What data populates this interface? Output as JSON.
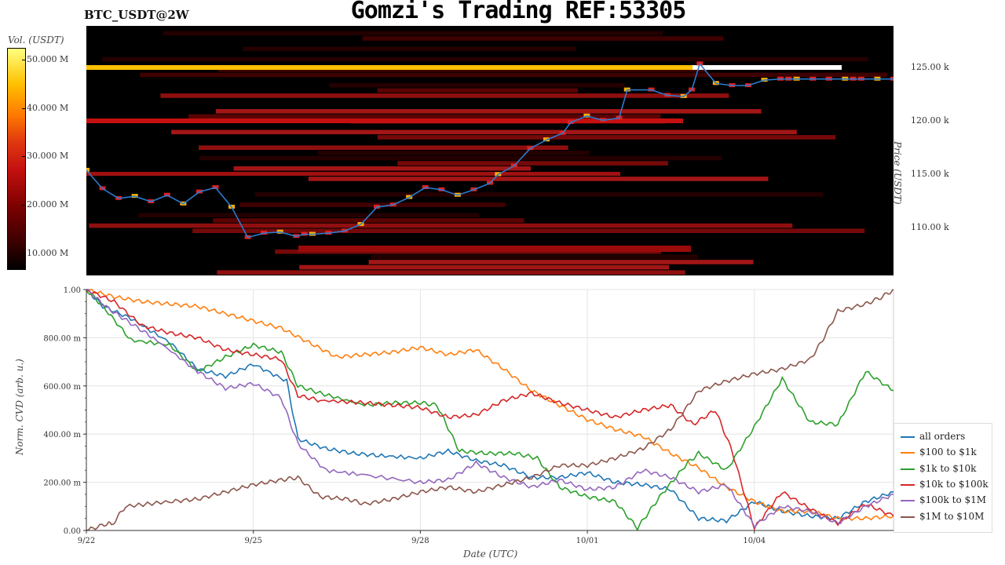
{
  "header": {
    "symbol": "BTC_USDT@2W",
    "title": "Gomzi's Trading REF:53305"
  },
  "colors": {
    "all": "#1f77b4",
    "b100": "#ff7f0e",
    "b1k": "#2ca02c",
    "b10k": "#d62728",
    "b100k": "#9467bd",
    "b1m": "#8c564b"
  },
  "chart_data": [
    {
      "type": "heatmap",
      "colorbar": {
        "label": "Vol. (USDT)",
        "ticks": [
          "50.000 M",
          "40.000 M",
          "30.000 M",
          "20.000 M",
          "10.000 M"
        ]
      },
      "y_axis": {
        "label": "Price (USDT)",
        "ticks": [
          "125.00 k",
          "120.00 k",
          "115.00 k",
          "110.00 k"
        ],
        "range": [
          105500,
          128500
        ]
      },
      "price_series": {
        "x": [
          0,
          0.02,
          0.04,
          0.06,
          0.08,
          0.1,
          0.12,
          0.14,
          0.16,
          0.18,
          0.2,
          0.22,
          0.24,
          0.26,
          0.27,
          0.28,
          0.3,
          0.32,
          0.34,
          0.36,
          0.38,
          0.4,
          0.42,
          0.44,
          0.46,
          0.48,
          0.5,
          0.51,
          0.53,
          0.55,
          0.57,
          0.59,
          0.6,
          0.62,
          0.64,
          0.66,
          0.67,
          0.7,
          0.72,
          0.74,
          0.75,
          0.76,
          0.78,
          0.8,
          0.82,
          0.84,
          0.86,
          0.87,
          0.88,
          0.9,
          0.92,
          0.94,
          0.95,
          0.96,
          0.98,
          1.0
        ],
        "y": [
          115200,
          113500,
          112600,
          112800,
          112300,
          112900,
          112100,
          113200,
          113600,
          111800,
          109000,
          109400,
          109500,
          109100,
          109300,
          109300,
          109400,
          109600,
          110200,
          111800,
          112000,
          112700,
          113600,
          113400,
          112900,
          113400,
          114000,
          114800,
          115600,
          117200,
          118000,
          118600,
          119600,
          120200,
          119800,
          120000,
          122600,
          122600,
          122100,
          122000,
          122600,
          125000,
          123200,
          123000,
          123000,
          123500,
          123600,
          123600,
          123600,
          123600,
          123600,
          123600,
          123600,
          123600,
          123600,
          123600
        ]
      }
    },
    {
      "type": "line",
      "xlabel": "Date (UTC)",
      "ylabel": "Norm. CVD (arb. u.)",
      "x_ticks": [
        "9/22",
        "9/25",
        "9/28",
        "10/01",
        "10/04"
      ],
      "y_ticks": [
        "1.00",
        "800.00 m",
        "600.00 m",
        "400.00 m",
        "200.00 m",
        "0.00"
      ],
      "xlim": [
        0,
        14.5
      ],
      "ylim": [
        0,
        1
      ],
      "series": [
        {
          "name": "all orders",
          "color": "#1f77b4",
          "x": [
            0,
            0.3,
            0.8,
            1.5,
            2.0,
            2.5,
            3.0,
            3.6,
            3.8,
            4.3,
            4.8,
            5.3,
            6.0,
            6.5,
            7.0,
            7.5,
            8.0,
            8.5,
            9.0,
            9.5,
            10.0,
            10.5,
            11.0,
            11.5,
            12.0,
            12.5,
            13.0,
            13.5,
            14.0,
            14.5
          ],
          "y": [
            1.0,
            0.93,
            0.88,
            0.78,
            0.67,
            0.64,
            0.69,
            0.62,
            0.38,
            0.34,
            0.32,
            0.31,
            0.3,
            0.33,
            0.29,
            0.27,
            0.22,
            0.22,
            0.24,
            0.2,
            0.19,
            0.17,
            0.05,
            0.04,
            0.12,
            0.08,
            0.06,
            0.05,
            0.12,
            0.16
          ]
        },
        {
          "name": "$100 to $1k",
          "color": "#ff7f0e",
          "x": [
            0,
            0.5,
            1.0,
            1.5,
            2.0,
            2.5,
            3.0,
            3.5,
            4.0,
            4.5,
            5.0,
            5.5,
            6.0,
            6.5,
            7.0,
            7.5,
            8.0,
            8.5,
            9.0,
            9.5,
            10.0,
            10.5,
            11.0,
            11.5,
            12.0,
            12.5,
            13.0,
            13.5,
            14.0,
            14.5
          ],
          "y": [
            1.0,
            0.97,
            0.95,
            0.94,
            0.93,
            0.9,
            0.87,
            0.84,
            0.78,
            0.72,
            0.73,
            0.74,
            0.76,
            0.73,
            0.75,
            0.67,
            0.58,
            0.52,
            0.46,
            0.42,
            0.39,
            0.32,
            0.26,
            0.18,
            0.12,
            0.08,
            0.08,
            0.05,
            0.05,
            0.06
          ]
        },
        {
          "name": "$1k to $10k",
          "color": "#2ca02c",
          "x": [
            0,
            0.3,
            0.8,
            1.5,
            2.0,
            2.5,
            3.0,
            3.5,
            3.8,
            4.2,
            5.0,
            5.5,
            6.0,
            6.3,
            6.7,
            7.2,
            7.7,
            8.1,
            8.5,
            9.0,
            9.5,
            9.9,
            10.3,
            10.8,
            11.0,
            11.5,
            12.0,
            12.5,
            13.0,
            13.5,
            14.0,
            14.5
          ],
          "y": [
            1.0,
            0.93,
            0.79,
            0.77,
            0.66,
            0.72,
            0.77,
            0.74,
            0.6,
            0.57,
            0.52,
            0.53,
            0.53,
            0.52,
            0.33,
            0.32,
            0.32,
            0.3,
            0.18,
            0.14,
            0.12,
            0.01,
            0.14,
            0.28,
            0.32,
            0.25,
            0.43,
            0.63,
            0.45,
            0.44,
            0.66,
            0.58
          ]
        },
        {
          "name": "$10k to $100k",
          "color": "#d62728",
          "x": [
            0,
            0.5,
            1.0,
            1.5,
            2.0,
            2.5,
            3.0,
            3.5,
            3.8,
            4.2,
            5.0,
            5.5,
            6.0,
            6.5,
            7.0,
            7.5,
            8.0,
            8.5,
            9.0,
            9.5,
            10.0,
            10.5,
            10.9,
            11.3,
            11.6,
            12.0,
            12.5,
            13.0,
            13.5,
            14.0,
            14.5
          ],
          "y": [
            1.0,
            0.95,
            0.85,
            0.82,
            0.8,
            0.75,
            0.73,
            0.71,
            0.56,
            0.54,
            0.53,
            0.52,
            0.51,
            0.47,
            0.48,
            0.54,
            0.57,
            0.53,
            0.5,
            0.47,
            0.5,
            0.52,
            0.44,
            0.5,
            0.33,
            0.01,
            0.16,
            0.09,
            0.03,
            0.11,
            0.06
          ]
        },
        {
          "name": "$100k to $1M",
          "color": "#9467bd",
          "x": [
            0,
            0.4,
            0.8,
            1.2,
            2.0,
            2.5,
            3.0,
            3.5,
            3.8,
            4.3,
            5.0,
            6.0,
            6.5,
            7.0,
            7.5,
            8.0,
            8.5,
            9.0,
            9.5,
            10.0,
            10.5,
            11.0,
            11.5,
            12.0,
            12.5,
            13.0,
            13.5,
            14.0,
            14.5
          ],
          "y": [
            1.0,
            0.92,
            0.86,
            0.8,
            0.66,
            0.59,
            0.61,
            0.55,
            0.36,
            0.25,
            0.23,
            0.2,
            0.21,
            0.28,
            0.22,
            0.18,
            0.21,
            0.17,
            0.18,
            0.25,
            0.22,
            0.16,
            0.19,
            0.02,
            0.1,
            0.08,
            0.03,
            0.1,
            0.15
          ]
        },
        {
          "name": "$1M to $10M",
          "color": "#8c564b",
          "x": [
            0,
            0.4,
            0.45,
            0.7,
            1.5,
            2.0,
            2.5,
            3.0,
            3.5,
            3.8,
            4.2,
            4.7,
            5.0,
            5.5,
            6.0,
            6.5,
            7.0,
            7.5,
            8.0,
            8.5,
            9.0,
            9.5,
            10.0,
            10.5,
            11.0,
            11.5,
            12.0,
            12.5,
            13.0,
            13.2,
            13.5,
            14.0,
            14.3,
            14.5
          ],
          "y": [
            0.0,
            0.03,
            0.02,
            0.1,
            0.12,
            0.13,
            0.16,
            0.19,
            0.21,
            0.22,
            0.14,
            0.13,
            0.11,
            0.13,
            0.16,
            0.18,
            0.16,
            0.19,
            0.22,
            0.27,
            0.27,
            0.3,
            0.34,
            0.42,
            0.58,
            0.62,
            0.65,
            0.67,
            0.71,
            0.78,
            0.91,
            0.94,
            0.97,
            1.0
          ]
        }
      ]
    }
  ]
}
